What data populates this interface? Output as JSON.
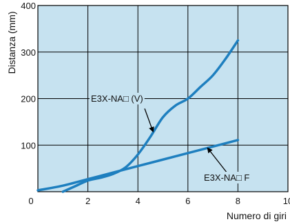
{
  "chart_data": {
    "type": "line",
    "title": "",
    "xlabel": "Numero di giri",
    "ylabel": "Distanza (mm)",
    "xlim": [
      0,
      10
    ],
    "ylim": [
      0,
      400
    ],
    "xticks": [
      "0",
      "2",
      "4",
      "6",
      "8",
      "10"
    ],
    "yticks": [
      "100",
      "200",
      "300",
      "400"
    ],
    "grid": true,
    "background_color": "#c6e2f0",
    "line_color": "#1e7fbf",
    "series": [
      {
        "name": "E3X-NA□ (V)",
        "x": [
          1,
          1.5,
          2,
          2.5,
          3,
          3.5,
          4,
          4.5,
          5,
          5.5,
          6,
          6.5,
          7,
          7.5,
          8
        ],
        "y": [
          0,
          12,
          24,
          30,
          38,
          52,
          80,
          118,
          160,
          185,
          200,
          225,
          250,
          285,
          325
        ]
      },
      {
        "name": "E3X-NA□ F",
        "x": [
          0,
          1,
          2,
          3,
          4,
          5,
          6,
          7,
          8
        ],
        "y": [
          3,
          13,
          27,
          41,
          55,
          69,
          83,
          97,
          111
        ]
      }
    ],
    "annotations": [
      {
        "text": "E3X-NA□ (V)",
        "series": 0,
        "x": 4.6,
        "y": 130
      },
      {
        "text": "E3X-NA□ F",
        "series": 1,
        "x": 6.8,
        "y": 93
      }
    ]
  }
}
